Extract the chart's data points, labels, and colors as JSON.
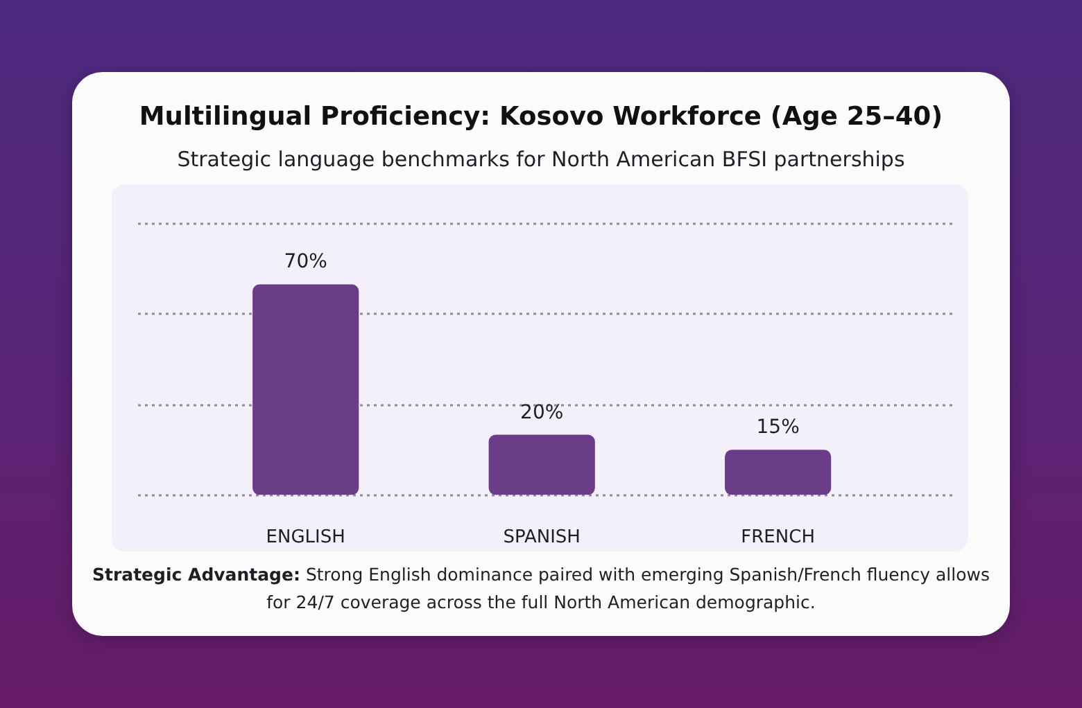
{
  "chart_data": {
    "type": "bar",
    "title": "Multilingual Proficiency: Kosovo Workforce (Age 25–40)",
    "subtitle": "Strategic language benchmarks for North American BFSI partnerships",
    "categories": [
      "ENGLISH",
      "SPANISH",
      "FRENCH"
    ],
    "values": [
      70,
      20,
      15
    ],
    "value_labels": [
      "70%",
      "20%",
      "15%"
    ],
    "color": "#6b3c88",
    "ylim": [
      -2,
      92
    ],
    "yticks": [
      {
        "value": 0,
        "label": null
      },
      {
        "value": 30,
        "label": null
      },
      {
        "value": 60,
        "label": null
      },
      {
        "value": 90,
        "label": null
      }
    ],
    "grid": "y",
    "tick_labels": "x",
    "annotations": [
      "Strategic Advantage: Strong English dominance paired with emerging Spanish/French fluency allows for 24/7 coverage across the full North American demographic."
    ]
  }
}
